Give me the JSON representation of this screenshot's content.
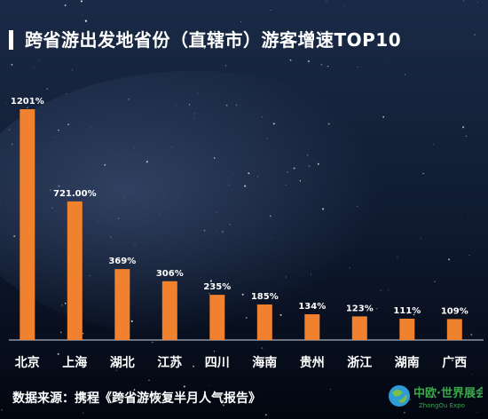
{
  "title": "跨省游出发地省份（直辖市）游客增速TOP10",
  "source": "数据来源：携程《跨省游恢复半月人气报告》",
  "logo": {
    "text": "中欧·世界展会",
    "subtext": "ZhongOu Expo"
  },
  "colors": {
    "bar": "#f0812f",
    "label": "#ffffff",
    "axis": "#cfd6e2",
    "bg_top": "#1a2a46",
    "bg_bottom": "#020610"
  },
  "chart_data": {
    "type": "bar",
    "title": "跨省游出发地省份（直辖市）游客增速TOP10",
    "categories": [
      "北京",
      "上海",
      "湖北",
      "江苏",
      "四川",
      "海南",
      "贵州",
      "浙江",
      "湖南",
      "广西"
    ],
    "values": [
      1201,
      721,
      369,
      306,
      235,
      185,
      134,
      123,
      111,
      109
    ],
    "value_labels": [
      "1201%",
      "721.00%",
      "369%",
      "306%",
      "235%",
      "185%",
      "134%",
      "123%",
      "111%",
      "109%"
    ],
    "unit": "%",
    "ylim": [
      0,
      1201
    ],
    "grid": false,
    "legend": "none"
  }
}
